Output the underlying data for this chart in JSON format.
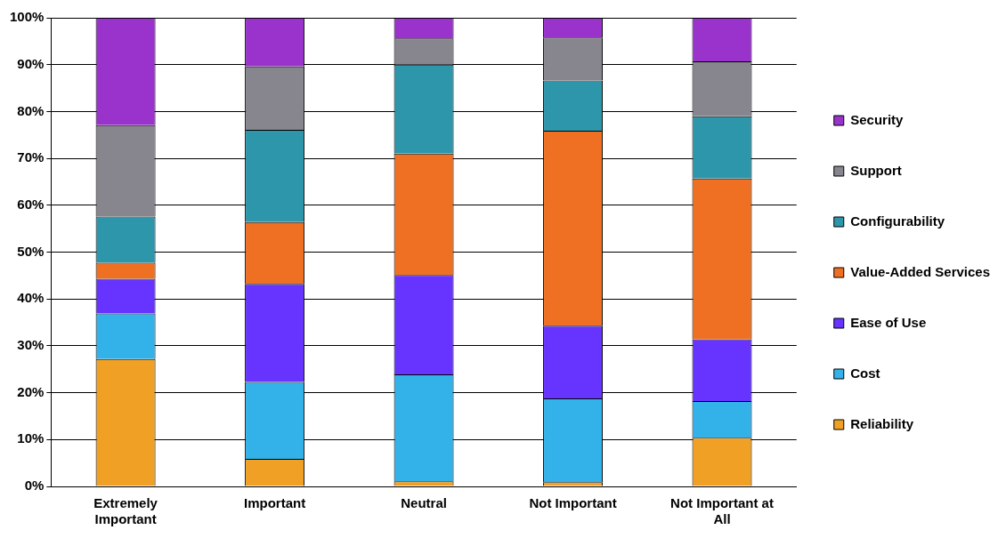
{
  "chart_data": {
    "type": "bar",
    "stacked": true,
    "categories": [
      "Extremely Important",
      "Important",
      "Neutral",
      "Not Important",
      "Not Important at All"
    ],
    "series": [
      {
        "name": "Reliability",
        "color": "#f0a125",
        "values": [
          27.2,
          5.9,
          1.1,
          0.9,
          10.4
        ]
      },
      {
        "name": "Cost",
        "color": "#33b2ea",
        "values": [
          9.7,
          16.4,
          22.8,
          17.9,
          7.8
        ]
      },
      {
        "name": "Ease of Use",
        "color": "#6633ff",
        "values": [
          7.4,
          20.9,
          21.2,
          15.5,
          13.2
        ]
      },
      {
        "name": "Value-Added Services",
        "color": "#ef7022",
        "values": [
          3.4,
          13.2,
          25.9,
          41.6,
          34.3
        ]
      },
      {
        "name": "Configurability",
        "color": "#2e96aa",
        "values": [
          9.9,
          19.7,
          19.0,
          10.7,
          13.3
        ]
      },
      {
        "name": "Support",
        "color": "#87858d",
        "values": [
          19.5,
          13.5,
          5.6,
          9.2,
          11.7
        ]
      },
      {
        "name": "Security",
        "color": "#9933cc",
        "values": [
          22.9,
          10.4,
          4.4,
          4.2,
          9.3
        ]
      }
    ],
    "ylim": [
      0,
      100
    ],
    "yticks": [
      {
        "value": 0,
        "label": "0%"
      },
      {
        "value": 10,
        "label": "10%"
      },
      {
        "value": 20,
        "label": "20%"
      },
      {
        "value": 30,
        "label": "30%"
      },
      {
        "value": 40,
        "label": "40%"
      },
      {
        "value": 50,
        "label": "50%"
      },
      {
        "value": 60,
        "label": "60%"
      },
      {
        "value": 70,
        "label": "70%"
      },
      {
        "value": 80,
        "label": "80%"
      },
      {
        "value": 90,
        "label": "90%"
      },
      {
        "value": 100,
        "label": "100%"
      }
    ],
    "grid": "y",
    "legend": "right"
  }
}
